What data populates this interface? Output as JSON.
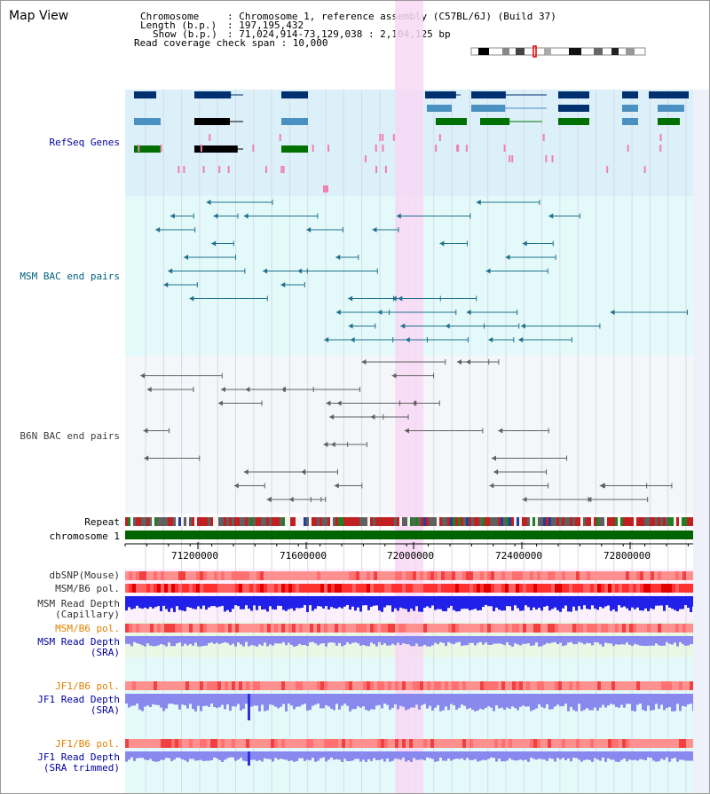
{
  "app": {
    "title": "Map View"
  },
  "info": {
    "chromosome_key": "Chromosome",
    "chromosome_value": ": Chromosome 1, reference assembly (C57BL/6J) (Build 37)",
    "length_key": "Length (b.p.)",
    "length_value": ": 197,195,432",
    "show_key": "Show (b.p.)",
    "show_value": ": 71,024,914-73,129,038 : 2,104,125 bp",
    "coverage": "Read coverage check span : 10,000"
  },
  "tracks": {
    "refseq": "RefSeq Genes",
    "msm_bac": "MSM BAC end pairs",
    "b6n_bac": "B6N BAC end pairs",
    "repeat": "Repeat",
    "chromosome": "chromosome 1",
    "dbsnp": "dbSNP(Mouse)",
    "msm_b6_pol_1": "MSM/B6 pol.",
    "msm_depth_cap_1": "MSM Read Depth",
    "msm_depth_cap_2": "(Capillary)",
    "msm_b6_pol_2": "MSM/B6 pol.",
    "msm_depth_sra_1": "MSM Read Depth",
    "msm_depth_sra_2": "(SRA)",
    "jf1_pol_1": "JF1/B6 pol.",
    "jf1_depth_1": "JF1 Read Depth",
    "jf1_depth_2": "(SRA)",
    "jf1_pol_2": "JF1/B6 pol.",
    "jf1_trim_1": "JF1 Read Depth",
    "jf1_trim_2": "(SRA trimmed)"
  },
  "axis": {
    "ticks": [
      "71200000",
      "71600000",
      "72000000",
      "72400000",
      "72800000"
    ]
  },
  "colors": {
    "highlight": "#f8d8f4",
    "refseq_bg": "#dcf0fa",
    "msm_bg": "#e4fafa",
    "b6n_bg": "#f4f6fa",
    "snp_bg": "#e8f8e4",
    "jf1_bg": "#e4fafa",
    "gene_dark": "#003070",
    "gene_mid": "#4a90c0",
    "gene_green": "#007000",
    "msm_line": "#20708c",
    "b6n_line": "#606060",
    "chrom_green": "#006400",
    "depth_blue": "#2020e8",
    "depth_light": "#8888ee",
    "label_blue": "#0000a0",
    "label_teal": "#006080",
    "label_gray": "#404040",
    "label_orange": "#e08000"
  }
}
